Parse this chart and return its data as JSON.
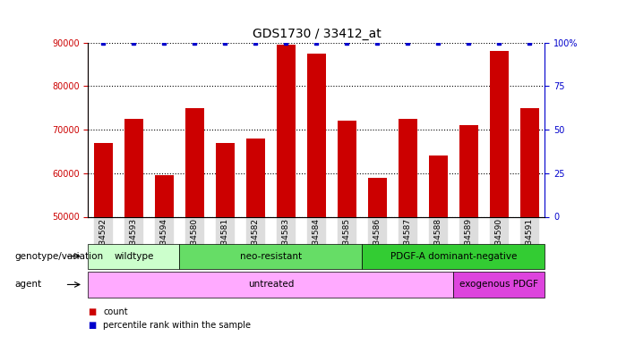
{
  "title": "GDS1730 / 33412_at",
  "samples": [
    "GSM34592",
    "GSM34593",
    "GSM34594",
    "GSM34580",
    "GSM34581",
    "GSM34582",
    "GSM34583",
    "GSM34584",
    "GSM34585",
    "GSM34586",
    "GSM34587",
    "GSM34588",
    "GSM34589",
    "GSM34590",
    "GSM34591"
  ],
  "counts": [
    67000,
    72500,
    59500,
    75000,
    67000,
    68000,
    89500,
    87500,
    72000,
    59000,
    72500,
    64000,
    71000,
    88000,
    75000
  ],
  "percentile_ranks": [
    100,
    100,
    100,
    100,
    100,
    100,
    100,
    100,
    100,
    100,
    100,
    100,
    100,
    100,
    100
  ],
  "bar_color": "#cc0000",
  "dot_color": "#0000cc",
  "ylim_left": [
    50000,
    90000
  ],
  "ylim_right": [
    0,
    100
  ],
  "yticks_left": [
    50000,
    60000,
    70000,
    80000,
    90000
  ],
  "yticks_right": [
    0,
    25,
    50,
    75,
    100
  ],
  "genotype_groups": [
    {
      "label": "wildtype",
      "start": 0,
      "end": 3,
      "color": "#ccffcc"
    },
    {
      "label": "neo-resistant",
      "start": 3,
      "end": 9,
      "color": "#66dd66"
    },
    {
      "label": "PDGF-A dominant-negative",
      "start": 9,
      "end": 15,
      "color": "#33cc33"
    }
  ],
  "agent_groups": [
    {
      "label": "untreated",
      "start": 0,
      "end": 12,
      "color": "#ffaaff"
    },
    {
      "label": "exogenous PDGF",
      "start": 12,
      "end": 15,
      "color": "#dd44dd"
    }
  ],
  "legend_count_label": "count",
  "legend_percentile_label": "percentile rank within the sample",
  "genotype_label": "genotype/variation",
  "agent_label": "agent",
  "tick_color_left": "#cc0000",
  "tick_color_right": "#0000cc",
  "xticklabel_bg": "#dddddd"
}
